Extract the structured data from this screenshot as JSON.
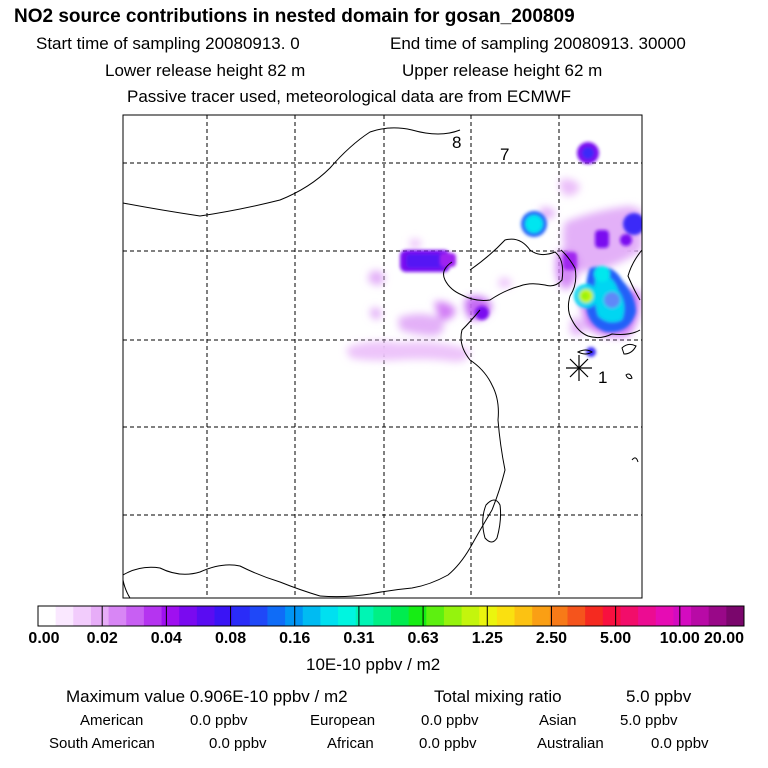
{
  "header": {
    "title": "NO2 source contributions in nested domain for gosan_200809",
    "start": "Start time of sampling 20080913.     0",
    "end": "End time of sampling 20080913. 30000",
    "lower": "Lower release height   82 m",
    "upper": "Upper release height   62 m",
    "note": "Passive tracer used, meteorological data are from ECMWF"
  },
  "markers": {
    "site": "1",
    "m7": "7",
    "m8": "8"
  },
  "colorbar": {
    "labels": [
      "0.00",
      "0.02",
      "0.04",
      "0.08",
      "0.16",
      "0.31",
      "0.63",
      "1.25",
      "2.50",
      "5.00",
      "10.00",
      "20.00"
    ],
    "colors": [
      "#ffffff",
      "#fae8ff",
      "#f2ccfc",
      "#e7adf8",
      "#d886f5",
      "#c85ff3",
      "#b534f0",
      "#9f10f0",
      "#7a0af0",
      "#5a0cf2",
      "#3a14f5",
      "#2a2cf8",
      "#1f48f8",
      "#0f6cf7",
      "#0095f5",
      "#00bbf2",
      "#00e0f0",
      "#00f5e0",
      "#00f5b4",
      "#00f085",
      "#00ec4f",
      "#16ed14",
      "#5df010",
      "#95f30d",
      "#c4f50d",
      "#ebf50e",
      "#fae010",
      "#fcc212",
      "#fa9f14",
      "#f77a18",
      "#f5541c",
      "#f52a20",
      "#f8103f",
      "#f20d6a",
      "#ec0c92",
      "#e60cb4",
      "#d40bc0",
      "#b80aa6",
      "#990888",
      "#7a066c"
    ],
    "unit": "10E-10 ppbv / m2"
  },
  "summary": {
    "max": "Maximum value  0.906E-10 ppbv / m2",
    "total_label": "Total mixing ratio",
    "total_value": "5.0 ppbv",
    "regions": [
      {
        "name": "American",
        "value": "0.0 ppbv"
      },
      {
        "name": "European",
        "value": "0.0 ppbv"
      },
      {
        "name": "Asian",
        "value": "5.0 ppbv"
      },
      {
        "name": "South American",
        "value": "0.0 ppbv"
      },
      {
        "name": "African",
        "value": "0.0 ppbv"
      },
      {
        "name": "Australian",
        "value": "0.0 ppbv"
      }
    ]
  }
}
